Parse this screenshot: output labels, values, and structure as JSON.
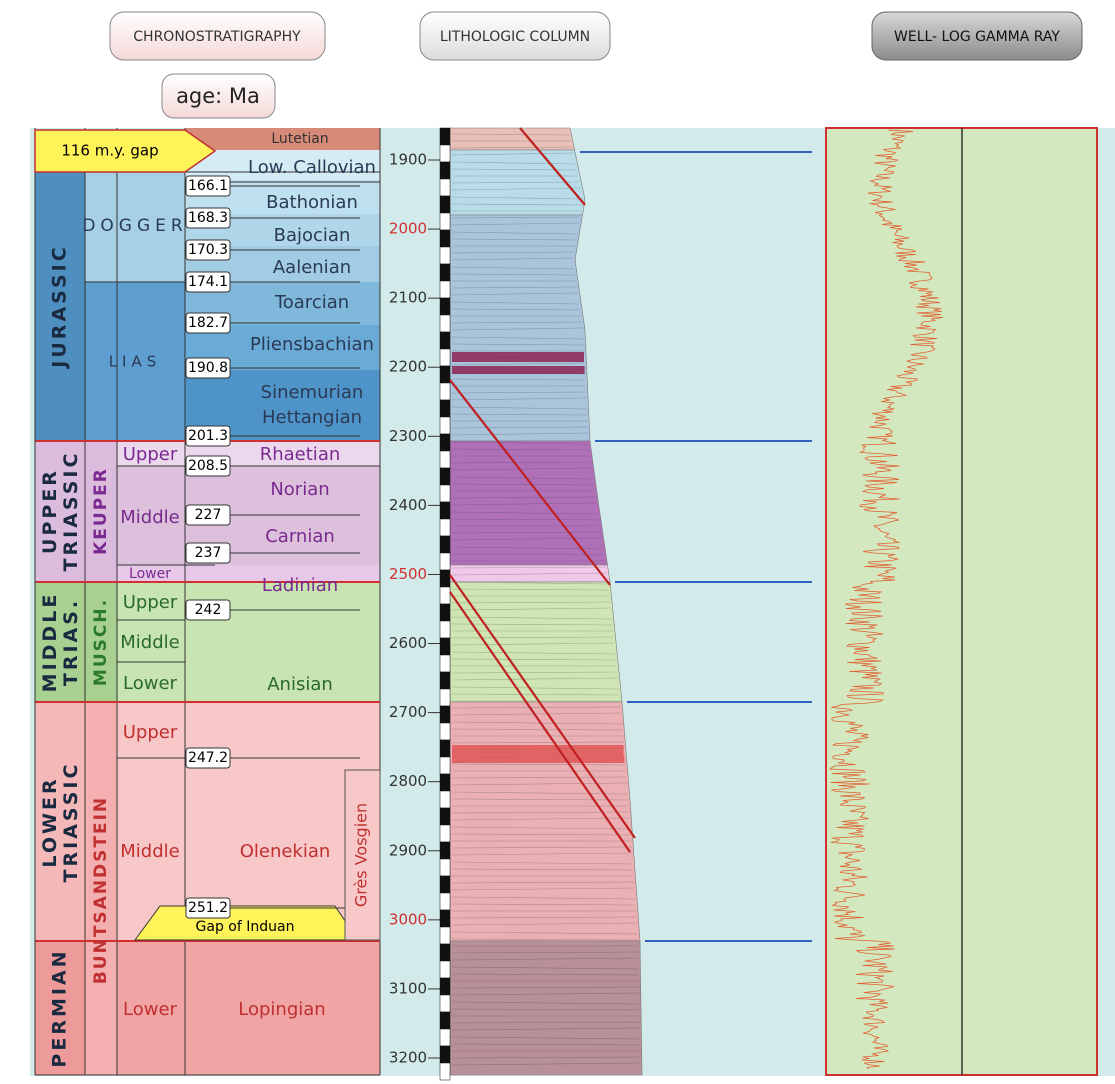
{
  "headers": {
    "chronostratigraphy": "CHRONOSTRATIGRAPHY",
    "age_unit": "age: Ma",
    "lithologic_column": "LITHOLOGIC COLUMN",
    "gamma_ray": "WELL- LOG GAMMA RAY"
  },
  "gaps": [
    "116 m.y. gap",
    "Gap of Induan"
  ],
  "systems": [
    "JURASSIC",
    "UPPER TRIASSIC",
    "MIDDLE TRIAS.",
    "LOWER TRIASSIC",
    "PERMIAN"
  ],
  "series": [
    "DOGGER",
    "LIAS",
    "KEUPER",
    "MUSCH.",
    "BUNTSANDSTEIN"
  ],
  "subseries": [
    "Upper",
    "Middle",
    "Lower",
    "Upper",
    "Middle",
    "Lower",
    "Upper",
    "Middle",
    "Lower"
  ],
  "stages": [
    "Lutetian",
    "Low. Callovian",
    "Bathonian",
    "Bajocian",
    "Aalenian",
    "Toarcian",
    "Pliensbachian",
    "Sinemurian",
    "Hettangian",
    "Rhaetian",
    "Norian",
    "Carnian",
    "Ladinian",
    "Anisian",
    "Olenekian",
    "Lopingian"
  ],
  "ages": [
    166.1,
    168.3,
    170.3,
    174.1,
    182.7,
    190.8,
    201.3,
    208.5,
    227,
    237,
    242,
    247.2,
    251.2
  ],
  "formation": "Grès Vosgien",
  "depth_ticks": [
    1900,
    2000,
    2100,
    2200,
    2300,
    2400,
    2500,
    2600,
    2700,
    2800,
    2900,
    3000,
    3100,
    3200
  ]
}
